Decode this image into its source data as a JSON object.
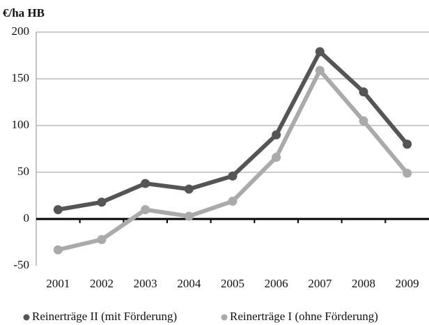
{
  "chart_data": {
    "type": "line",
    "y_label": "€/ha HB",
    "categories": [
      "2001",
      "2002",
      "2003",
      "2004",
      "2005",
      "2006",
      "2007",
      "2008",
      "2009"
    ],
    "series": [
      {
        "name": "Reinerträge II (mit Förderung)",
        "color": "#555555",
        "values": [
          10,
          18,
          38,
          32,
          46,
          90,
          179,
          136,
          80
        ]
      },
      {
        "name": "Reinerträge I (ohne Förderung)",
        "color": "#aaaaaa",
        "values": [
          -33,
          -22,
          10,
          3,
          19,
          66,
          159,
          105,
          49
        ]
      }
    ],
    "ylim": [
      -50,
      200
    ],
    "yticks": [
      -50,
      0,
      50,
      100,
      150,
      200
    ],
    "grid": true
  }
}
